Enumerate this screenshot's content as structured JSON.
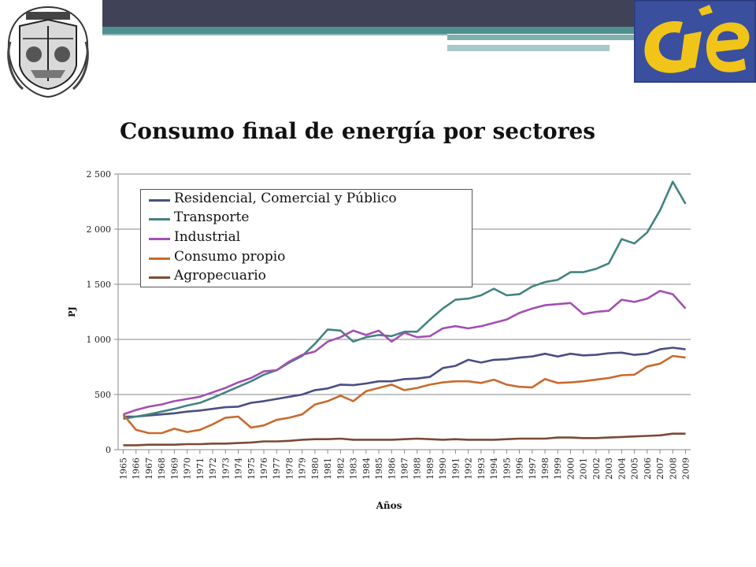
{
  "title": "Consumo final de energía por sectores",
  "logos": {
    "unam": "unam-shield-logo",
    "cie": "cie-logo"
  },
  "colors": {
    "Residencial": "#4a4e82",
    "Transporte": "#438381",
    "Industrial": "#a24fb3",
    "ConsumoPropio": "#c96a2d",
    "Agropecuario": "#7c4a35",
    "cie_yellow": "#f1c41a",
    "cie_blue": "#3a4f9e"
  },
  "chart_data": {
    "type": "line",
    "title": "Consumo final de energía por sectores",
    "xlabel": "Años",
    "ylabel": "PJ",
    "ylim": [
      0,
      2500
    ],
    "yticks": [
      "0",
      "500",
      "1 000",
      "1 500",
      "2 000",
      "2 500"
    ],
    "grid": true,
    "legend_position": "top-left",
    "categories": [
      "1965",
      "1966",
      "1967",
      "1968",
      "1969",
      "1970",
      "1971",
      "1972",
      "1973",
      "1974",
      "1975",
      "1976",
      "1977",
      "1978",
      "1979",
      "1980",
      "1981",
      "1982",
      "1983",
      "1984",
      "1985",
      "1986",
      "1987",
      "1988",
      "1989",
      "1990",
      "1991",
      "1992",
      "1993",
      "1994",
      "1995",
      "1996",
      "1997",
      "1998",
      "1999",
      "2000",
      "2001",
      "2002",
      "2003",
      "2004",
      "2005",
      "2006",
      "2007",
      "2008",
      "2009"
    ],
    "series": [
      {
        "name": "Residencial, Comercial y Público",
        "color": "#4a4e82",
        "values": [
          300,
          300,
          310,
          320,
          330,
          345,
          355,
          370,
          385,
          390,
          425,
          440,
          460,
          480,
          500,
          540,
          555,
          590,
          585,
          600,
          620,
          620,
          640,
          645,
          660,
          740,
          760,
          815,
          790,
          815,
          820,
          835,
          845,
          870,
          845,
          870,
          855,
          860,
          875,
          880,
          860,
          870,
          910,
          925,
          910
        ]
      },
      {
        "name": "Transporte",
        "color": "#438381",
        "values": [
          280,
          300,
          320,
          345,
          370,
          400,
          425,
          470,
          520,
          570,
          620,
          680,
          720,
          790,
          850,
          960,
          1090,
          1080,
          980,
          1020,
          1040,
          1030,
          1070,
          1070,
          1180,
          1280,
          1360,
          1370,
          1400,
          1460,
          1400,
          1410,
          1480,
          1520,
          1540,
          1610,
          1610,
          1640,
          1690,
          1910,
          1870,
          1970,
          2170,
          2430,
          2230
        ]
      },
      {
        "name": "Industrial",
        "color": "#a24fb3",
        "values": [
          320,
          360,
          390,
          410,
          440,
          460,
          480,
          520,
          560,
          610,
          650,
          710,
          720,
          800,
          860,
          890,
          980,
          1020,
          1080,
          1040,
          1080,
          980,
          1060,
          1020,
          1030,
          1100,
          1120,
          1100,
          1120,
          1150,
          1180,
          1240,
          1280,
          1310,
          1320,
          1330,
          1230,
          1250,
          1260,
          1360,
          1340,
          1370,
          1440,
          1410,
          1280
        ]
      },
      {
        "name": "Consumo propio",
        "color": "#c96a2d",
        "values": [
          320,
          180,
          150,
          150,
          190,
          160,
          180,
          230,
          290,
          300,
          200,
          220,
          270,
          290,
          320,
          410,
          440,
          490,
          440,
          530,
          560,
          590,
          540,
          560,
          590,
          610,
          620,
          620,
          605,
          635,
          590,
          570,
          565,
          640,
          605,
          610,
          620,
          635,
          650,
          675,
          680,
          755,
          780,
          850,
          835
        ]
      },
      {
        "name": "Agropecuario",
        "color": "#7c4a35",
        "values": [
          40,
          40,
          45,
          45,
          45,
          50,
          50,
          55,
          55,
          60,
          65,
          75,
          75,
          80,
          90,
          95,
          95,
          100,
          90,
          90,
          90,
          90,
          95,
          100,
          95,
          90,
          95,
          90,
          90,
          90,
          95,
          100,
          100,
          100,
          110,
          110,
          105,
          105,
          110,
          115,
          120,
          125,
          130,
          145,
          145
        ]
      }
    ]
  }
}
